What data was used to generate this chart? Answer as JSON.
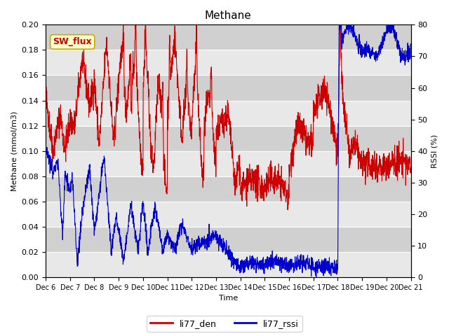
{
  "title": "Methane",
  "xlabel": "Time",
  "ylabel_left": "Methane (mmol/m3)",
  "ylabel_right": "RSSI (%)",
  "ylim_left": [
    0.0,
    0.2
  ],
  "ylim_right": [
    0,
    80
  ],
  "yticks_left": [
    0.0,
    0.02,
    0.04,
    0.06,
    0.08,
    0.1,
    0.12,
    0.14,
    0.16,
    0.18,
    0.2
  ],
  "yticks_right": [
    0,
    10,
    20,
    30,
    40,
    50,
    60,
    70,
    80
  ],
  "xtick_labels": [
    "Dec 6",
    "Dec 7",
    "Dec 8",
    "Dec 9",
    "Dec 10",
    "Dec 11",
    "Dec 12",
    "Dec 13",
    "Dec 14",
    "Dec 15",
    "Dec 16",
    "Dec 17",
    "Dec 18",
    "Dec 19",
    "Dec 20",
    "Dec 21"
  ],
  "color_red": "#cc0000",
  "color_blue": "#0000cc",
  "legend_labels": [
    "li77_den",
    "li77_rssi"
  ],
  "annotation_text": "SW_flux",
  "annotation_color": "#cc0000",
  "annotation_bg": "#ffffcc",
  "plot_bg_light": "#e8e8e8",
  "plot_bg_dark": "#d0d0d0",
  "linewidth": 0.8,
  "title_fontsize": 11,
  "label_fontsize": 8,
  "tick_fontsize": 8
}
